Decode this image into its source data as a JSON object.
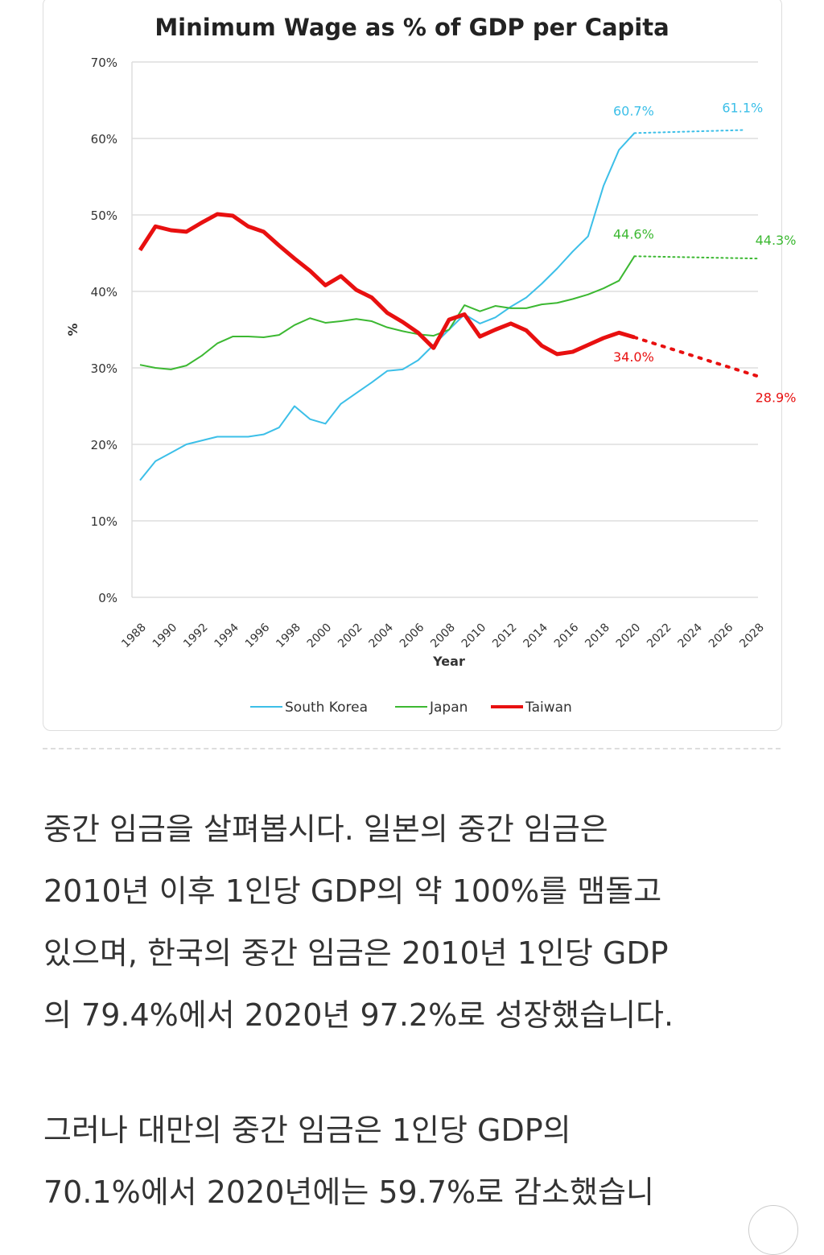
{
  "chart_data": {
    "type": "line",
    "title": "Minimum Wage as % of GDP per Capita",
    "xlabel": "Year",
    "ylabel": "%",
    "xlim": [
      1988,
      2028
    ],
    "ylim": [
      0,
      70
    ],
    "yticks": [
      "0%",
      "10%",
      "20%",
      "30%",
      "40%",
      "50%",
      "60%",
      "70%"
    ],
    "xticks": [
      "1988",
      "1990",
      "1992",
      "1994",
      "1996",
      "1998",
      "2000",
      "2002",
      "2004",
      "2006",
      "2008",
      "2010",
      "2012",
      "2014",
      "2016",
      "2018",
      "2020",
      "2022",
      "2024",
      "2026",
      "2028"
    ],
    "grid": true,
    "legend_position": "bottom",
    "x": [
      1988,
      1989,
      1990,
      1991,
      1992,
      1993,
      1994,
      1995,
      1996,
      1997,
      1998,
      1999,
      2000,
      2001,
      2002,
      2003,
      2004,
      2005,
      2006,
      2007,
      2008,
      2009,
      2010,
      2011,
      2012,
      2013,
      2014,
      2015,
      2016,
      2017,
      2018,
      2019,
      2020
    ],
    "series": [
      {
        "name": "South Korea",
        "color": "#3cbfe8",
        "values": [
          15.3,
          17.8,
          18.9,
          20.0,
          20.5,
          21.0,
          21.0,
          21.0,
          21.3,
          22.2,
          25.0,
          23.3,
          22.7,
          25.3,
          26.7,
          28.1,
          29.6,
          29.8,
          31.0,
          33.0,
          35.0,
          37.0,
          35.8,
          36.6,
          38.0,
          39.2,
          41.0,
          43.0,
          45.2,
          47.2,
          53.8,
          58.5,
          60.7
        ],
        "projection": {
          "x": [
            2020,
            2027
          ],
          "values": [
            60.7,
            61.1
          ]
        },
        "labels": [
          "60.7%",
          "61.1%"
        ]
      },
      {
        "name": "Japan",
        "color": "#3cb832",
        "values": [
          30.4,
          30.0,
          29.8,
          30.3,
          31.6,
          33.2,
          34.1,
          34.1,
          34.0,
          34.3,
          35.6,
          36.5,
          35.9,
          36.1,
          36.4,
          36.1,
          35.3,
          34.8,
          34.4,
          34.2,
          35.0,
          38.2,
          37.4,
          38.1,
          37.8,
          37.8,
          38.3,
          38.5,
          39.0,
          39.6,
          40.4,
          41.4,
          44.6
        ],
        "projection": {
          "x": [
            2020,
            2028
          ],
          "values": [
            44.6,
            44.3
          ]
        },
        "labels": [
          "44.6%",
          "44.3%"
        ]
      },
      {
        "name": "Taiwan",
        "color": "#e81010",
        "values": [
          45.4,
          48.5,
          48.0,
          47.8,
          49.0,
          50.1,
          49.9,
          48.5,
          47.8,
          46.0,
          44.3,
          42.7,
          40.8,
          42.0,
          40.2,
          39.2,
          37.2,
          36.0,
          34.6,
          32.6,
          36.3,
          37.0,
          34.1,
          35.0,
          35.8,
          34.9,
          32.9,
          31.8,
          32.1,
          33.0,
          33.9,
          34.6,
          34.0
        ],
        "projection": {
          "x": [
            2020,
            2028
          ],
          "values": [
            34.0,
            28.9
          ]
        },
        "labels": [
          "34.0%",
          "28.9%"
        ]
      }
    ]
  },
  "article": {
    "paragraph1_lines": [
      "중간 임금을 살펴봅시다. 일본의 중간 임금은",
      "2010년 이후 1인당 GDP의 약 100%를 맴돌고",
      "있으며, 한국의 중간 임금은 2010년 1인당 GDP",
      "의 79.4%에서 2020년 97.2%로 성장했습니다."
    ],
    "paragraph2_lines": [
      "그러나 대만의 중간 임금은 1인당 GDP의",
      "70.1%에서 2020년에는 59.7%로 감소했습니"
    ]
  }
}
